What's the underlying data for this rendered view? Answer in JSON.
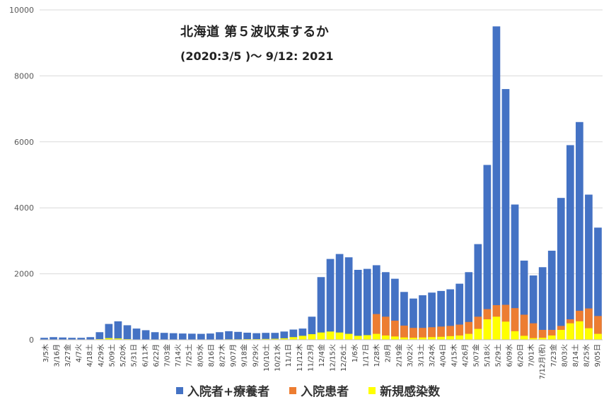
{
  "chart_data": {
    "type": "bar",
    "title": "北海道 第５波収束するか",
    "subtitle": "(2020:3/5 )～ 9/12: 2021",
    "ylim": [
      0,
      10000
    ],
    "yticks": [
      0,
      2000,
      4000,
      6000,
      8000,
      10000
    ],
    "ytick_labels": [
      "0",
      "2000",
      "4000",
      "6000",
      "8000",
      "10000"
    ],
    "grid": true,
    "legend_position": "bottom",
    "xtick_labels": [
      "3/5木",
      "3/16月",
      "3/27金",
      "4/7火",
      "4/18土",
      "4/29水",
      "5/09土",
      "5/20水",
      "5/31日",
      "6/11木",
      "6/22月",
      "7/03金",
      "7/14火",
      "7/25土",
      "8/05水",
      "8/16日",
      "8/27木",
      "9/07月",
      "9/18金",
      "9/29火",
      "10/10土",
      "10/21水",
      "11/1日",
      "11/12木",
      "11/23月",
      "12/4金",
      "12/15火",
      "12/26土",
      "1/6水",
      "1/17日",
      "1/28木",
      "2/8月",
      "2/19金",
      "3/02火",
      "3/13土",
      "3/24水",
      "4/04日",
      "4/15木",
      "4/26月",
      "5/07金",
      "5/18火",
      "5/29土",
      "6/09水",
      "6/20日",
      "7/01木",
      "7/12月(祝)",
      "7/23金",
      "8/03火",
      "8/14土",
      "8/25水",
      "9/05日"
    ],
    "series": [
      {
        "name": "入院者+療養者",
        "color": "#4472C4",
        "values": [
          60,
          80,
          70,
          60,
          60,
          80,
          230,
          480,
          560,
          440,
          340,
          290,
          230,
          210,
          200,
          190,
          185,
          180,
          190,
          230,
          260,
          240,
          215,
          200,
          210,
          210,
          250,
          310,
          340,
          700,
          1900,
          2450,
          2600,
          2500,
          2120,
          2150,
          2260,
          2050,
          1850,
          1450,
          1250,
          1350,
          1430,
          1480,
          1530,
          1700,
          2050,
          2900,
          5300,
          9500,
          7600,
          4100,
          2400,
          1950,
          2200,
          2700,
          4300,
          5900,
          6600,
          4400,
          3400
        ]
      },
      {
        "name": "入院患者",
        "color": "#ED7D31",
        "values": [
          0,
          0,
          0,
          0,
          0,
          0,
          0,
          0,
          0,
          0,
          0,
          0,
          0,
          0,
          0,
          0,
          0,
          0,
          0,
          0,
          0,
          0,
          0,
          0,
          0,
          0,
          0,
          0,
          0,
          0,
          0,
          0,
          0,
          0,
          0,
          0,
          780,
          700,
          580,
          430,
          360,
          360,
          380,
          400,
          420,
          460,
          540,
          700,
          930,
          1050,
          1060,
          960,
          760,
          500,
          300,
          300,
          420,
          620,
          880,
          950,
          720
        ]
      },
      {
        "name": "新規感染数",
        "color": "#FFFF00",
        "values": [
          5,
          5,
          5,
          5,
          5,
          5,
          20,
          50,
          40,
          20,
          10,
          5,
          5,
          5,
          5,
          5,
          5,
          5,
          5,
          10,
          15,
          15,
          20,
          20,
          25,
          30,
          45,
          80,
          120,
          170,
          220,
          250,
          220,
          180,
          120,
          140,
          180,
          130,
          100,
          70,
          60,
          70,
          80,
          90,
          110,
          130,
          180,
          330,
          620,
          700,
          550,
          260,
          120,
          50,
          60,
          130,
          300,
          500,
          560,
          350,
          180
        ]
      }
    ]
  }
}
